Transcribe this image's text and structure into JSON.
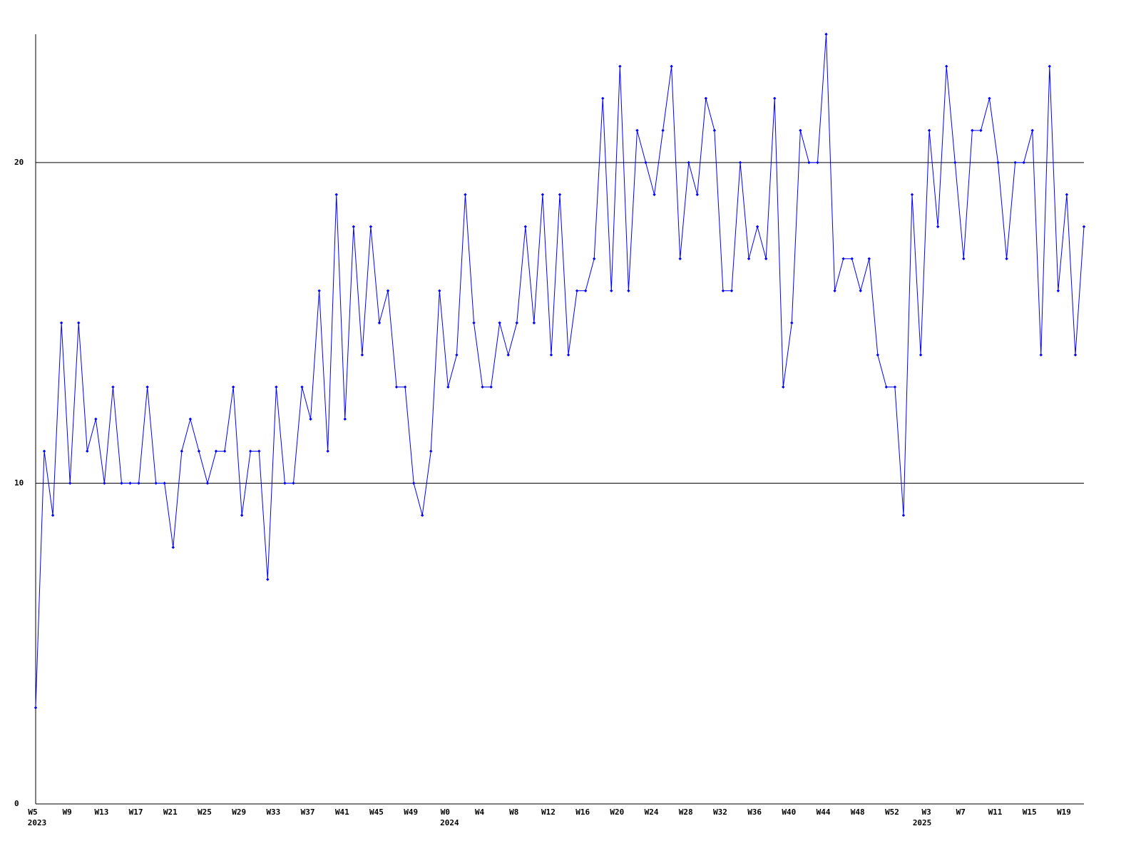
{
  "chart_data": {
    "type": "line",
    "categories": [
      "W5",
      null,
      null,
      null,
      "W9",
      null,
      null,
      null,
      "W13",
      null,
      null,
      null,
      "W17",
      null,
      null,
      null,
      "W21",
      null,
      null,
      null,
      "W25",
      null,
      null,
      null,
      "W29",
      null,
      null,
      null,
      "W33",
      null,
      null,
      null,
      "W37",
      null,
      null,
      null,
      "W41",
      null,
      null,
      null,
      "W45",
      null,
      null,
      null,
      "W49",
      null,
      null,
      null,
      "W0",
      null,
      null,
      null,
      "W4",
      null,
      null,
      null,
      "W8",
      null,
      null,
      null,
      "W12",
      null,
      null,
      null,
      "W16",
      null,
      null,
      null,
      "W20",
      null,
      null,
      null,
      "W24",
      null,
      null,
      null,
      "W28",
      null,
      null,
      null,
      "W32",
      null,
      null,
      null,
      "W36",
      null,
      null,
      null,
      "W40",
      null,
      null,
      null,
      "W44",
      null,
      null,
      null,
      "W48",
      null,
      null,
      null,
      "W52",
      null,
      null,
      null,
      "W3",
      null,
      null,
      null,
      "W7",
      null,
      null,
      null,
      "W11",
      null,
      null,
      null,
      "W15",
      null,
      null,
      null,
      "W19",
      null,
      null
    ],
    "years": [
      "2023",
      null,
      null,
      null,
      null,
      null,
      null,
      null,
      null,
      null,
      null,
      null,
      null,
      null,
      null,
      null,
      null,
      null,
      null,
      null,
      null,
      null,
      null,
      null,
      null,
      null,
      null,
      null,
      null,
      null,
      null,
      null,
      null,
      null,
      null,
      null,
      null,
      null,
      null,
      null,
      null,
      null,
      null,
      null,
      null,
      null,
      null,
      null,
      "2024",
      null,
      null,
      null,
      null,
      null,
      null,
      null,
      null,
      null,
      null,
      null,
      null,
      null,
      null,
      null,
      null,
      null,
      null,
      null,
      null,
      null,
      null,
      null,
      null,
      null,
      null,
      null,
      null,
      null,
      null,
      null,
      null,
      null,
      null,
      null,
      null,
      null,
      null,
      null,
      null,
      null,
      null,
      null,
      null,
      null,
      null,
      null,
      null,
      null,
      null,
      null,
      null,
      null,
      null,
      "2025",
      null,
      null,
      null,
      null,
      null,
      null,
      null,
      null,
      null,
      null,
      null,
      null,
      null,
      null,
      null,
      null,
      null,
      null,
      null,
      null,
      null
    ],
    "series": [
      {
        "color": "#0000ff",
        "values": [
          3,
          11,
          9,
          15,
          10,
          15,
          11,
          12,
          10,
          13,
          10,
          10,
          10,
          13,
          10,
          10,
          8,
          11,
          12,
          11,
          10,
          11,
          11,
          13,
          9,
          11,
          11,
          7,
          13,
          10,
          10,
          13,
          12,
          16,
          11,
          19,
          12,
          18,
          14,
          18,
          15,
          16,
          13,
          13,
          10,
          9,
          11,
          16,
          13,
          14,
          19,
          15,
          13,
          13,
          15,
          14,
          15,
          18,
          15,
          19,
          14,
          19,
          14,
          16,
          16,
          17,
          22,
          16,
          23,
          16,
          21,
          20,
          19,
          21,
          23,
          17,
          20,
          19,
          22,
          21,
          16,
          16,
          20,
          17,
          18,
          17,
          22,
          13,
          15,
          21,
          20,
          20,
          24,
          16,
          17,
          17,
          16,
          17,
          14,
          13,
          13,
          9,
          19,
          14,
          21,
          18,
          23,
          20,
          17,
          21,
          21,
          22,
          20,
          17,
          20,
          20,
          21,
          14,
          23,
          16,
          19,
          14,
          18
        ]
      }
    ],
    "ylim": [
      0,
      24
    ],
    "yticks": [
      0,
      10,
      20
    ],
    "grid": true
  }
}
